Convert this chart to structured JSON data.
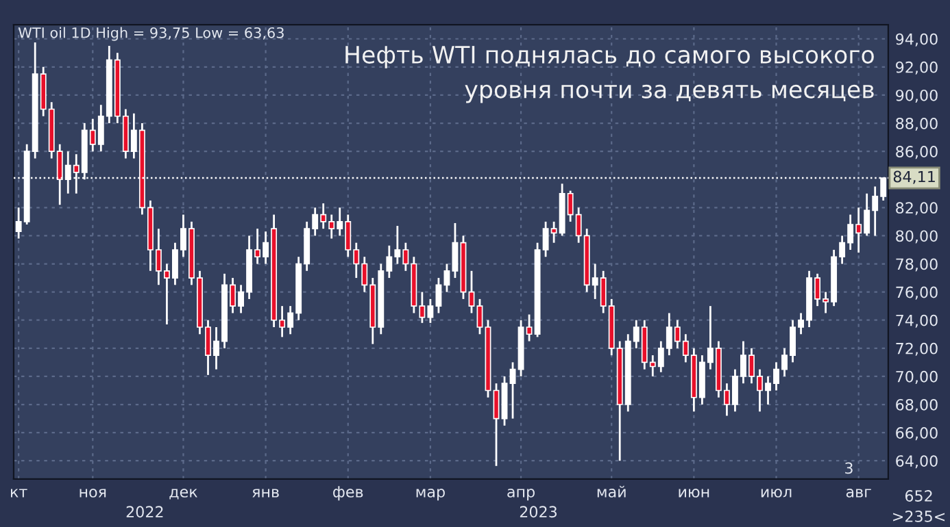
{
  "chart_data": {
    "type": "candlestick",
    "title": "Нефть WTI поднялась до самого высокого\nуровня почти за девять месяцев",
    "subtitle": "WTI oil 1D High = 93,75 Low = 63,63",
    "categories": [
      "кт",
      null,
      null,
      null,
      null,
      null,
      null,
      null,
      null,
      "ноя",
      null,
      null,
      null,
      null,
      null,
      null,
      null,
      null,
      null,
      null,
      "дек",
      null,
      null,
      null,
      null,
      null,
      null,
      null,
      null,
      null,
      "янв",
      null,
      null,
      null,
      null,
      null,
      null,
      null,
      null,
      null,
      "фев",
      null,
      null,
      null,
      null,
      null,
      null,
      null,
      null,
      null,
      "мар",
      null,
      null,
      null,
      null,
      null,
      null,
      null,
      null,
      null,
      null,
      "апр",
      null,
      null,
      null,
      null,
      null,
      null,
      null,
      null,
      null,
      null,
      "май",
      null,
      null,
      null,
      null,
      null,
      null,
      null,
      null,
      null,
      "июн",
      null,
      null,
      null,
      null,
      null,
      null,
      null,
      null,
      null,
      "июл",
      null,
      null,
      null,
      null,
      null,
      null,
      null,
      null,
      null,
      "авг",
      null,
      null,
      null
    ],
    "ohlc": [
      [
        80.3,
        82,
        79.8,
        81
      ],
      [
        81,
        86.5,
        80.8,
        86
      ],
      [
        86,
        93.75,
        85.5,
        91.5
      ],
      [
        91.5,
        92,
        88.5,
        89
      ],
      [
        89,
        89.5,
        85.5,
        86
      ],
      [
        86,
        86.5,
        82.2,
        84
      ],
      [
        84,
        86,
        83,
        85
      ],
      [
        85,
        85.8,
        83,
        84.5
      ],
      [
        84.5,
        88,
        84,
        87.5
      ],
      [
        87.5,
        88.3,
        86,
        86.5
      ],
      [
        86.5,
        89.3,
        86,
        88.5
      ],
      [
        88.5,
        93.5,
        88,
        92.5
      ],
      [
        92.5,
        93,
        88,
        88.5
      ],
      [
        88.5,
        89,
        85.5,
        86
      ],
      [
        86,
        88.7,
        85.5,
        87.5
      ],
      [
        87.5,
        88,
        81.5,
        82
      ],
      [
        82,
        82.5,
        77.5,
        79
      ],
      [
        79,
        80.5,
        76.5,
        77.5
      ],
      [
        77.5,
        78,
        73.7,
        77
      ],
      [
        77,
        79.5,
        76.5,
        79
      ],
      [
        79,
        81.5,
        78.5,
        80.5
      ],
      [
        80.5,
        81,
        76.5,
        77
      ],
      [
        77,
        77.5,
        73,
        73.5
      ],
      [
        73.5,
        74,
        70.1,
        71.5
      ],
      [
        71.5,
        73.5,
        70.5,
        72.5
      ],
      [
        72.5,
        77.3,
        72,
        76.5
      ],
      [
        76.5,
        77,
        74.5,
        75
      ],
      [
        75,
        76.5,
        74.5,
        76
      ],
      [
        76,
        80,
        75.5,
        79
      ],
      [
        79,
        80.5,
        78,
        78.5
      ],
      [
        78.5,
        80.3,
        78,
        79.5
      ],
      [
        80.5,
        81.5,
        73.5,
        74
      ],
      [
        74,
        75,
        72.8,
        73.5
      ],
      [
        73.5,
        75,
        73,
        74.5
      ],
      [
        74.5,
        78.5,
        74,
        78
      ],
      [
        78,
        81,
        77.5,
        80.5
      ],
      [
        80.5,
        82,
        80,
        81.5
      ],
      [
        81.5,
        82.3,
        80.5,
        81
      ],
      [
        81,
        81.5,
        79.8,
        80.5
      ],
      [
        80.5,
        82,
        80,
        81
      ],
      [
        81,
        81.5,
        78.5,
        79
      ],
      [
        79,
        79.5,
        77,
        78
      ],
      [
        78,
        78.5,
        76,
        76.5
      ],
      [
        76.5,
        77,
        72.3,
        73.5
      ],
      [
        73.5,
        78,
        73,
        77.5
      ],
      [
        77.5,
        79.3,
        77,
        78.5
      ],
      [
        78.5,
        80.7,
        78,
        79
      ],
      [
        79,
        79.5,
        77.5,
        78
      ],
      [
        78,
        78.5,
        74.5,
        75
      ],
      [
        75,
        76,
        73.8,
        74.2
      ],
      [
        74.2,
        75.5,
        73.8,
        75
      ],
      [
        75,
        77,
        74.5,
        76.5
      ],
      [
        76.5,
        78,
        76,
        77.5
      ],
      [
        77.5,
        80.9,
        77,
        79.5
      ],
      [
        79.5,
        80,
        75.5,
        76
      ],
      [
        76,
        77.5,
        74.5,
        75
      ],
      [
        75,
        75.5,
        73,
        73.5
      ],
      [
        73.5,
        74,
        68.5,
        69
      ],
      [
        69,
        69.5,
        63.63,
        67
      ],
      [
        67,
        70,
        66.5,
        69.5
      ],
      [
        69.5,
        71,
        67,
        70.5
      ],
      [
        70.5,
        74,
        70,
        73.5
      ],
      [
        73.5,
        74.4,
        72.5,
        73
      ],
      [
        73,
        79.5,
        72.8,
        79
      ],
      [
        79,
        81,
        78.5,
        80.5
      ],
      [
        80.5,
        81,
        79.5,
        80.2
      ],
      [
        80.2,
        83.7,
        80,
        83
      ],
      [
        83,
        83.2,
        81,
        81.5
      ],
      [
        81.5,
        82,
        79.5,
        80
      ],
      [
        80,
        80.5,
        76,
        76.5
      ],
      [
        76.5,
        78,
        75.5,
        77
      ],
      [
        77,
        77.5,
        74.5,
        75
      ],
      [
        75,
        75.5,
        71.5,
        72
      ],
      [
        72,
        72.5,
        64,
        68
      ],
      [
        68,
        73,
        67.5,
        72.5
      ],
      [
        72.5,
        74,
        72,
        73.5
      ],
      [
        73.5,
        74,
        70.5,
        71
      ],
      [
        71,
        71.5,
        70,
        70.7
      ],
      [
        70.7,
        72.5,
        70.3,
        72
      ],
      [
        72,
        74.5,
        71.5,
        73.5
      ],
      [
        73.5,
        74,
        72,
        72.5
      ],
      [
        72.5,
        73,
        71,
        71.5
      ],
      [
        71.5,
        72,
        67.5,
        68.5
      ],
      [
        68.5,
        71.5,
        68,
        71
      ],
      [
        71,
        75,
        70.5,
        72
      ],
      [
        72,
        72.5,
        68.5,
        69
      ],
      [
        69,
        69.5,
        67.2,
        68
      ],
      [
        68,
        70.5,
        67.5,
        70
      ],
      [
        70,
        72.5,
        69.5,
        71.5
      ],
      [
        71.5,
        72,
        69.5,
        70
      ],
      [
        70,
        70.5,
        67.5,
        69
      ],
      [
        69,
        70,
        68,
        69.5
      ],
      [
        69.5,
        71,
        69,
        70.5
      ],
      [
        70.5,
        72,
        70,
        71.5
      ],
      [
        71.5,
        74,
        71,
        73.5
      ],
      [
        73.5,
        74.5,
        73,
        74
      ],
      [
        74,
        77.5,
        73.5,
        77
      ],
      [
        77,
        77.3,
        75,
        75.5
      ],
      [
        75.5,
        76,
        74.5,
        75.3
      ],
      [
        75.3,
        79,
        75,
        78.5
      ],
      [
        78.5,
        80,
        78,
        79.5
      ],
      [
        79.5,
        81.5,
        79,
        80.8
      ],
      [
        80.8,
        82,
        78.8,
        80.2
      ],
      [
        80.2,
        83,
        80,
        81.8
      ],
      [
        81.8,
        83.5,
        80,
        82.8
      ],
      [
        82.8,
        84.11,
        82.5,
        84.11
      ]
    ],
    "ylim": [
      62.7,
      95
    ],
    "yticks": [
      {
        "value": 64,
        "label": "64,00"
      },
      {
        "value": 66,
        "label": "66,00"
      },
      {
        "value": 68,
        "label": "68,00"
      },
      {
        "value": 70,
        "label": "70,00"
      },
      {
        "value": 72,
        "label": "72,00"
      },
      {
        "value": 74,
        "label": "74,00"
      },
      {
        "value": 76,
        "label": "76,00"
      },
      {
        "value": 78,
        "label": "78,00"
      },
      {
        "value": 80,
        "label": "80,00"
      },
      {
        "value": 82,
        "label": "82,00"
      },
      {
        "value": 86,
        "label": "86,00"
      },
      {
        "value": 88,
        "label": "88,00"
      },
      {
        "value": 90,
        "label": "90,00"
      },
      {
        "value": 92,
        "label": "92,00"
      },
      {
        "value": 94,
        "label": "94,00"
      }
    ],
    "ref_lines": [
      {
        "axis": "y",
        "value": 84.11,
        "label": "84,11",
        "color": "#ffffff",
        "line_style": "dotted"
      }
    ],
    "annotations": [
      "2022",
      "2023",
      "652",
      ">235<",
      "3"
    ],
    "grid": true,
    "legend": false
  }
}
